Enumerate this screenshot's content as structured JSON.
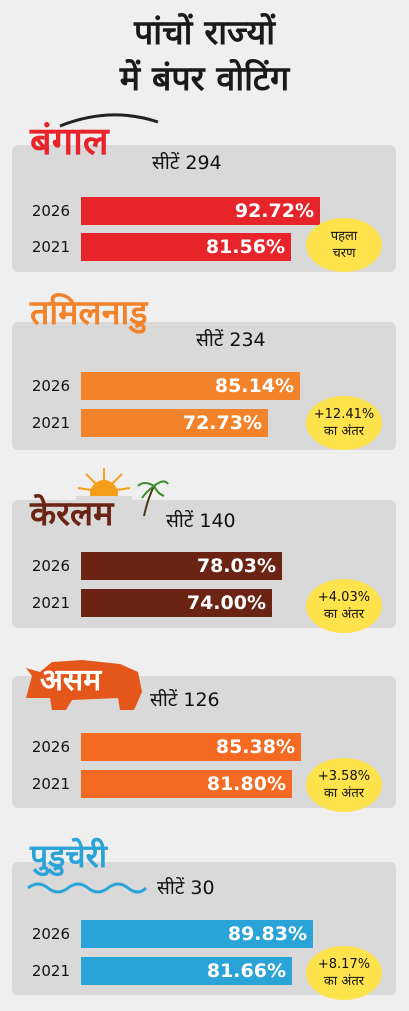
{
  "title_line1": "पांचों राज्यों",
  "title_line2": "में बंपर वोटिंग",
  "states": [
    {
      "logo": "बंगाल",
      "seats": "सीटें 294",
      "color": "#e8242b",
      "rows": [
        {
          "year": "2026",
          "value": 92.72,
          "label": "92.72%"
        },
        {
          "year": "2021",
          "value": 81.56,
          "label": "81.56%"
        }
      ],
      "badge": [
        "पहला",
        "चरण"
      ]
    },
    {
      "logo": "तमिलनाडु",
      "seats": "सीटें 234",
      "color": "#f2832a",
      "rows": [
        {
          "year": "2026",
          "value": 85.14,
          "label": "85.14%"
        },
        {
          "year": "2021",
          "value": 72.73,
          "label": "72.73%"
        }
      ],
      "badge": [
        "+12.41%",
        "का अंतर"
      ]
    },
    {
      "logo": "केरलम",
      "seats": "सीटें 140",
      "color": "#6b2413",
      "rows": [
        {
          "year": "2026",
          "value": 78.03,
          "label": "78.03%"
        },
        {
          "year": "2021",
          "value": 74.0,
          "label": "74.00%"
        }
      ],
      "badge": [
        "+4.03%",
        "का अंतर"
      ]
    },
    {
      "logo": "असम",
      "seats": "सीटें 126",
      "color": "#f46a22",
      "rows": [
        {
          "year": "2026",
          "value": 85.38,
          "label": "85.38%"
        },
        {
          "year": "2021",
          "value": 81.8,
          "label": "81.80%"
        }
      ],
      "badge": [
        "+3.58%",
        "का अंतर"
      ]
    },
    {
      "logo": "पुडुचेरी",
      "seats": "सीटें 30",
      "color": "#2aa3d8",
      "rows": [
        {
          "year": "2026",
          "value": 89.83,
          "label": "89.83%"
        },
        {
          "year": "2021",
          "value": 81.66,
          "label": "81.66%"
        }
      ],
      "badge": [
        "+8.17%",
        "का अंतर"
      ]
    }
  ],
  "chart_data": {
    "type": "bar",
    "orientation": "horizontal",
    "categories": [
      "बंगाल",
      "तमिलनाडु",
      "केरलम",
      "असम",
      "पुडुचेरी"
    ],
    "series": [
      {
        "name": "2026",
        "values": [
          92.72,
          85.14,
          78.03,
          85.38,
          89.83
        ]
      },
      {
        "name": "2021",
        "values": [
          81.56,
          72.73,
          74.0,
          81.8,
          81.66
        ]
      }
    ],
    "title": "पांचों राज्यों में बंपर वोटिंग",
    "xlim": [
      0,
      100
    ]
  }
}
